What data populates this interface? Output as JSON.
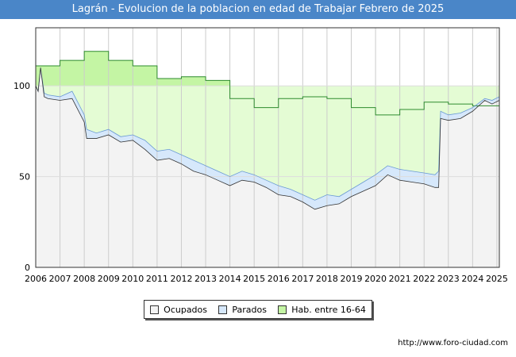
{
  "title": "Lagrán - Evolucion de la poblacion en edad de Trabajar Febrero de 2025",
  "source": "http://www.foro-ciudad.com",
  "colors": {
    "title_bg": "#4a86c8",
    "hab_fill": "#e4fcd4",
    "hab_fill_top": "#c4f5a4",
    "hab_line": "#2e8b2e",
    "parados_fill": "#d6e8fb",
    "parados_line": "#6a9ad4",
    "ocupados_fill": "#f3f3f3",
    "ocupados_line": "#333333"
  },
  "chart_data": {
    "type": "area",
    "title": "Lagrán - Evolucion de la poblacion en edad de Trabajar Febrero de 2025",
    "xlim": [
      2006,
      2025.1
    ],
    "ylim": [
      0,
      132
    ],
    "x_ticks": [
      2006,
      2007,
      2008,
      2009,
      2010,
      2011,
      2012,
      2013,
      2014,
      2015,
      2016,
      2017,
      2018,
      2019,
      2020,
      2021,
      2022,
      2023,
      2024,
      2025
    ],
    "y_ticks": [
      0,
      50,
      100
    ],
    "grid": true,
    "legend_position": "bottom-center",
    "series": [
      {
        "name": "Hab. entre 16-64",
        "type": "step",
        "points": [
          [
            2006.0,
            111
          ],
          [
            2007.0,
            114
          ],
          [
            2008.0,
            119
          ],
          [
            2009.0,
            114
          ],
          [
            2010.0,
            111
          ],
          [
            2011.0,
            104
          ],
          [
            2012.0,
            105
          ],
          [
            2013.0,
            103
          ],
          [
            2014.0,
            93
          ],
          [
            2015.0,
            88
          ],
          [
            2016.0,
            93
          ],
          [
            2017.0,
            94
          ],
          [
            2018.0,
            93
          ],
          [
            2019.0,
            88
          ],
          [
            2020.0,
            84
          ],
          [
            2021.0,
            87
          ],
          [
            2022.0,
            91
          ],
          [
            2023.0,
            90
          ],
          [
            2024.0,
            89
          ],
          [
            2025.1,
            89
          ]
        ]
      },
      {
        "name": "Parados",
        "type": "line",
        "points": [
          [
            2006.0,
            100
          ],
          [
            2006.1,
            97
          ],
          [
            2006.2,
            110
          ],
          [
            2006.35,
            96
          ],
          [
            2006.5,
            95
          ],
          [
            2007.0,
            94
          ],
          [
            2007.5,
            97
          ],
          [
            2008.0,
            84
          ],
          [
            2008.1,
            76
          ],
          [
            2008.5,
            74
          ],
          [
            2009.0,
            76
          ],
          [
            2009.5,
            72
          ],
          [
            2010.0,
            73
          ],
          [
            2010.5,
            70
          ],
          [
            2011.0,
            64
          ],
          [
            2011.5,
            65
          ],
          [
            2012.0,
            62
          ],
          [
            2012.5,
            59
          ],
          [
            2013.0,
            56
          ],
          [
            2013.5,
            53
          ],
          [
            2014.0,
            50
          ],
          [
            2014.5,
            53
          ],
          [
            2015.0,
            51
          ],
          [
            2015.5,
            48
          ],
          [
            2016.0,
            45
          ],
          [
            2016.5,
            43
          ],
          [
            2017.0,
            40
          ],
          [
            2017.5,
            37
          ],
          [
            2018.0,
            40
          ],
          [
            2018.5,
            39
          ],
          [
            2019.0,
            43
          ],
          [
            2019.5,
            47
          ],
          [
            2020.0,
            51
          ],
          [
            2020.5,
            56
          ],
          [
            2021.0,
            54
          ],
          [
            2021.5,
            53
          ],
          [
            2022.0,
            52
          ],
          [
            2022.45,
            51
          ],
          [
            2022.6,
            53
          ],
          [
            2022.68,
            86
          ],
          [
            2023.0,
            84
          ],
          [
            2023.5,
            85
          ],
          [
            2024.0,
            88
          ],
          [
            2024.5,
            93
          ],
          [
            2024.8,
            92
          ],
          [
            2025.1,
            94
          ]
        ]
      },
      {
        "name": "Ocupados",
        "type": "line",
        "points": [
          [
            2006.0,
            100
          ],
          [
            2006.1,
            97
          ],
          [
            2006.2,
            110
          ],
          [
            2006.35,
            94
          ],
          [
            2006.5,
            93
          ],
          [
            2007.0,
            92
          ],
          [
            2007.5,
            93
          ],
          [
            2008.0,
            80
          ],
          [
            2008.1,
            71
          ],
          [
            2008.5,
            71
          ],
          [
            2009.0,
            73
          ],
          [
            2009.5,
            69
          ],
          [
            2010.0,
            70
          ],
          [
            2010.5,
            65
          ],
          [
            2011.0,
            59
          ],
          [
            2011.5,
            60
          ],
          [
            2012.0,
            57
          ],
          [
            2012.5,
            53
          ],
          [
            2013.0,
            51
          ],
          [
            2013.5,
            48
          ],
          [
            2014.0,
            45
          ],
          [
            2014.5,
            48
          ],
          [
            2015.0,
            47
          ],
          [
            2015.5,
            44
          ],
          [
            2016.0,
            40
          ],
          [
            2016.5,
            39
          ],
          [
            2017.0,
            36
          ],
          [
            2017.5,
            32
          ],
          [
            2018.0,
            34
          ],
          [
            2018.5,
            35
          ],
          [
            2019.0,
            39
          ],
          [
            2019.5,
            42
          ],
          [
            2020.0,
            45
          ],
          [
            2020.5,
            51
          ],
          [
            2021.0,
            48
          ],
          [
            2021.5,
            47
          ],
          [
            2022.0,
            46
          ],
          [
            2022.45,
            44
          ],
          [
            2022.6,
            44
          ],
          [
            2022.68,
            82
          ],
          [
            2023.0,
            81
          ],
          [
            2023.5,
            82
          ],
          [
            2024.0,
            86
          ],
          [
            2024.5,
            92
          ],
          [
            2024.8,
            90
          ],
          [
            2025.1,
            92
          ]
        ]
      }
    ]
  },
  "legend": [
    {
      "label": "Ocupados",
      "color": "#f3f3f3"
    },
    {
      "label": "Parados",
      "color": "#d6e8fb"
    },
    {
      "label": "Hab. entre 16-64",
      "color": "#c4f5a4"
    }
  ]
}
